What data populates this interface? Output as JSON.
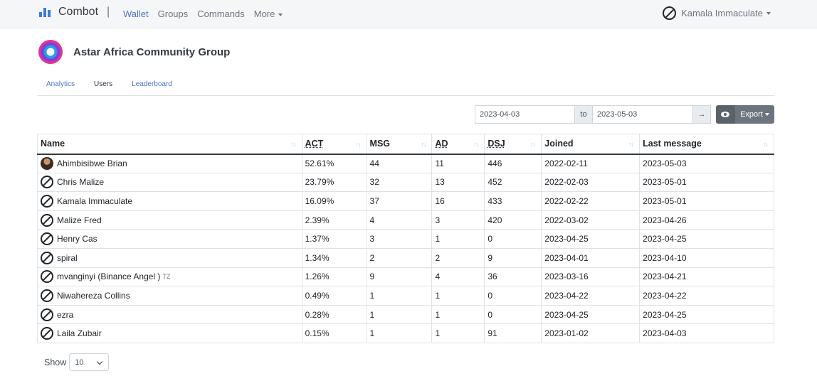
{
  "nav": {
    "brand": "Combot",
    "separator": "|",
    "links": [
      {
        "label": "Wallet",
        "active": true
      },
      {
        "label": "Groups",
        "active": false
      },
      {
        "label": "Commands",
        "active": false
      },
      {
        "label": "More",
        "active": false
      }
    ],
    "user": "Kamala Immaculate"
  },
  "group": {
    "title": "Astar Africa Community Group"
  },
  "tabs": [
    {
      "label": "Analytics"
    },
    {
      "label": "Users"
    },
    {
      "label": "Leaderboard"
    }
  ],
  "filters": {
    "date_from": "2023-04-03",
    "to_label": "to",
    "date_to": "2023-05-03",
    "go_label": "→",
    "export_label": "Export"
  },
  "table": {
    "headers": [
      "Name",
      "ACT",
      "MSG",
      "AD",
      "DSJ",
      "Joined",
      "Last message"
    ],
    "rows": [
      {
        "name": "Ahimbisibwe Brian",
        "avatar": "photo",
        "act": "52.61%",
        "msg": "44",
        "ad": "11",
        "dsj": "446",
        "joined": "2022-02-11",
        "last": "2023-05-03"
      },
      {
        "name": "Chris Malize",
        "avatar": "ban",
        "act": "23.79%",
        "msg": "32",
        "ad": "13",
        "dsj": "452",
        "joined": "2022-02-03",
        "last": "2023-05-01"
      },
      {
        "name": "Kamala Immaculate",
        "avatar": "ban",
        "act": "16.09%",
        "msg": "37",
        "ad": "16",
        "dsj": "433",
        "joined": "2022-02-22",
        "last": "2023-05-01"
      },
      {
        "name": "Malize Fred",
        "avatar": "ban",
        "act": "2.39%",
        "msg": "4",
        "ad": "3",
        "dsj": "420",
        "joined": "2022-03-02",
        "last": "2023-04-26"
      },
      {
        "name": "Henry Cas",
        "avatar": "ban",
        "act": "1.37%",
        "msg": "3",
        "ad": "1",
        "dsj": "0",
        "joined": "2023-04-25",
        "last": "2023-04-25"
      },
      {
        "name": "spiral",
        "avatar": "ban",
        "act": "1.34%",
        "msg": "2",
        "ad": "2",
        "dsj": "9",
        "joined": "2023-04-01",
        "last": "2023-04-10"
      },
      {
        "name": "mvanginyi (Binance Angel )",
        "badge": "TZ",
        "avatar": "ban",
        "act": "1.26%",
        "msg": "9",
        "ad": "4",
        "dsj": "36",
        "joined": "2023-03-16",
        "last": "2023-04-21"
      },
      {
        "name": "Niwahereza Collins",
        "avatar": "ban",
        "act": "0.49%",
        "msg": "1",
        "ad": "1",
        "dsj": "0",
        "joined": "2023-04-22",
        "last": "2023-04-22"
      },
      {
        "name": "ezra",
        "avatar": "ban",
        "act": "0.28%",
        "msg": "1",
        "ad": "1",
        "dsj": "0",
        "joined": "2023-04-25",
        "last": "2023-04-25"
      },
      {
        "name": "Laila Zubair",
        "avatar": "ban",
        "act": "0.15%",
        "msg": "1",
        "ad": "1",
        "dsj": "91",
        "joined": "2023-01-02",
        "last": "2023-04-03"
      }
    ]
  },
  "pagination": {
    "show_label": "Show",
    "page_size": "10"
  }
}
